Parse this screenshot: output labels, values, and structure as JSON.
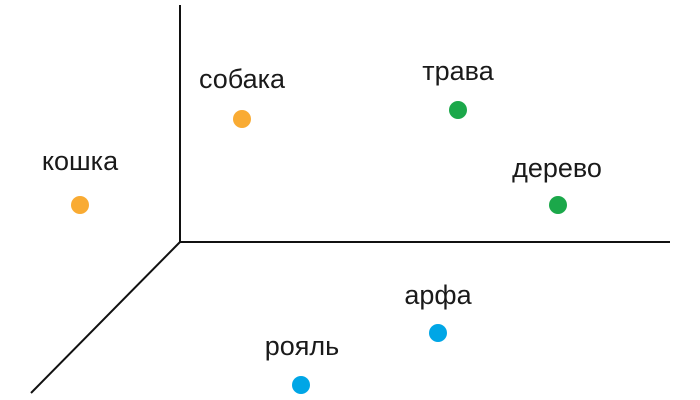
{
  "colors": {
    "animal": "#f9ab33",
    "plant": "#1ba84a",
    "instrument": "#00a6e6",
    "axis": "#111111",
    "text": "#1a1a1a"
  },
  "words": [
    {
      "id": "koshka",
      "label": "кошка",
      "group": "animal"
    },
    {
      "id": "sobaka",
      "label": "собака",
      "group": "animal"
    },
    {
      "id": "trava",
      "label": "трава",
      "group": "plant"
    },
    {
      "id": "derevo",
      "label": "дерево",
      "group": "plant"
    },
    {
      "id": "arfa",
      "label": "арфа",
      "group": "instrument"
    },
    {
      "id": "royal",
      "label": "рояль",
      "group": "instrument"
    }
  ]
}
